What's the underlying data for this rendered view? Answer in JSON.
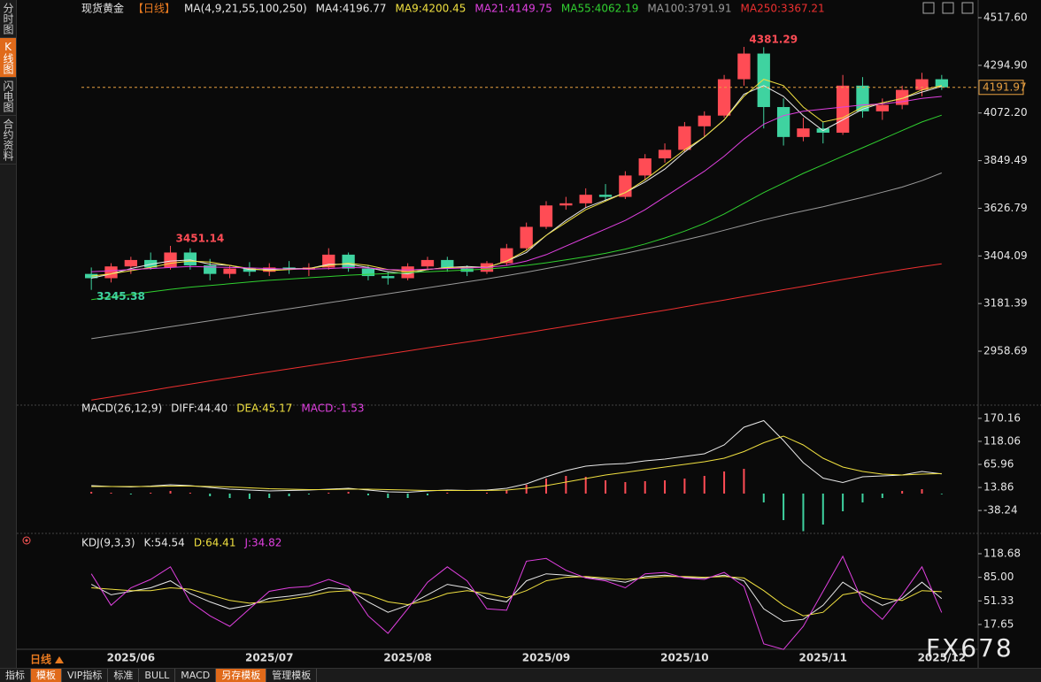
{
  "ui": {
    "side_tabs": [
      "分时图",
      "K线图",
      "闪电图",
      "合约资料"
    ],
    "active_side_tab": 1,
    "bottom_tabs": [
      "指标",
      "模板",
      "VIP指标",
      "标准",
      "BULL",
      "MACD",
      "另存模板",
      "管理模板"
    ],
    "highlighted_bottom_tabs": [
      1,
      6
    ],
    "period_label": "日线",
    "watermark": "FX678"
  },
  "chart_data": [
    {
      "type": "candlestick",
      "title": "现货黄金",
      "period": "【日线】",
      "legend_title": "MA(4,9,21,55,100,250)",
      "categories": [
        null,
        null,
        "2025/06",
        null,
        null,
        null,
        null,
        null,
        null,
        "2025/07",
        null,
        null,
        null,
        null,
        null,
        null,
        "2025/08",
        null,
        null,
        null,
        null,
        null,
        null,
        "2025/09",
        null,
        null,
        null,
        null,
        null,
        null,
        "2025/10",
        null,
        null,
        null,
        null,
        null,
        null,
        "2025/11",
        null,
        null,
        null,
        null,
        null,
        "2025/12"
      ],
      "open": [
        3320,
        3300,
        3355,
        3385,
        3350,
        3420,
        3360,
        3320,
        3345,
        3330,
        3350,
        3340,
        3350,
        3410,
        3345,
        3310,
        3300,
        3355,
        3385,
        3345,
        3330,
        3370,
        3440,
        3540,
        3640,
        3650,
        3690,
        3680,
        3780,
        3860,
        3900,
        4010,
        4060,
        4230,
        4350,
        4100,
        3960,
        4000,
        3980,
        4200,
        4080,
        4110,
        4180,
        4230
      ],
      "high": [
        3350,
        3370,
        3400,
        3420,
        3451.14,
        3440,
        3390,
        3360,
        3375,
        3370,
        3380,
        3370,
        3440,
        3420,
        3360,
        3330,
        3370,
        3400,
        3400,
        3360,
        3380,
        3460,
        3560,
        3660,
        3680,
        3720,
        3740,
        3800,
        3880,
        3930,
        4030,
        4080,
        4250,
        4381.29,
        4380,
        4140,
        4050,
        4030,
        4250,
        4240,
        4140,
        4200,
        4260,
        4250
      ],
      "low": [
        3245.38,
        3280,
        3320,
        3340,
        3340,
        3340,
        3290,
        3300,
        3310,
        3310,
        3320,
        3310,
        3340,
        3330,
        3290,
        3270,
        3290,
        3340,
        3330,
        3310,
        3320,
        3360,
        3430,
        3530,
        3620,
        3630,
        3660,
        3670,
        3760,
        3840,
        3890,
        3960,
        4050,
        4200,
        4000,
        3920,
        3940,
        3930,
        3970,
        4050,
        4040,
        4090,
        4150,
        4180
      ],
      "close": [
        3300,
        3355,
        3385,
        3350,
        3420,
        3360,
        3320,
        3345,
        3330,
        3350,
        3340,
        3350,
        3410,
        3345,
        3310,
        3300,
        3355,
        3385,
        3345,
        3330,
        3370,
        3440,
        3540,
        3640,
        3650,
        3690,
        3680,
        3780,
        3860,
        3900,
        4010,
        4060,
        4230,
        4350,
        4100,
        3960,
        4000,
        3980,
        4200,
        4080,
        4110,
        4180,
        4230,
        4191.97
      ],
      "up_color": "#ff4c55",
      "down_color": "#3fd3a0",
      "series": [
        {
          "name": "MA4:4196.77",
          "color": "#e8e8e8",
          "values": [
            3300,
            3320,
            3345,
            3365,
            3380,
            3385,
            3365,
            3360,
            3340,
            3340,
            3345,
            3345,
            3365,
            3365,
            3350,
            3330,
            3320,
            3340,
            3350,
            3355,
            3350,
            3380,
            3420,
            3500,
            3570,
            3630,
            3665,
            3700,
            3750,
            3810,
            3890,
            3960,
            4040,
            4160,
            4200,
            4150,
            4060,
            3990,
            4040,
            4090,
            4120,
            4140,
            4170,
            4196.77
          ]
        },
        {
          "name": "MA9:4200.45",
          "color": "#f0e040",
          "values": [
            3310,
            3320,
            3335,
            3350,
            3370,
            3380,
            3375,
            3360,
            3345,
            3335,
            3340,
            3345,
            3360,
            3370,
            3360,
            3340,
            3330,
            3340,
            3350,
            3350,
            3350,
            3380,
            3430,
            3500,
            3560,
            3620,
            3660,
            3700,
            3760,
            3830,
            3900,
            3960,
            4040,
            4150,
            4230,
            4200,
            4100,
            4030,
            4050,
            4100,
            4120,
            4140,
            4180,
            4200.45
          ]
        },
        {
          "name": "MA21:4149.75",
          "color": "#e040e0",
          "values": [
            3330,
            3335,
            3340,
            3345,
            3350,
            3355,
            3352,
            3350,
            3348,
            3345,
            3343,
            3342,
            3345,
            3350,
            3348,
            3340,
            3338,
            3342,
            3345,
            3348,
            3350,
            3360,
            3380,
            3410,
            3450,
            3490,
            3530,
            3570,
            3620,
            3680,
            3740,
            3800,
            3870,
            3950,
            4020,
            4060,
            4080,
            4090,
            4100,
            4110,
            4115,
            4125,
            4140,
            4149.75
          ]
        },
        {
          "name": "MA55:4062.19",
          "color": "#30d030",
          "values": [
            3200,
            3212,
            3224,
            3236,
            3248,
            3258,
            3266,
            3274,
            3282,
            3290,
            3296,
            3302,
            3308,
            3314,
            3318,
            3322,
            3326,
            3330,
            3334,
            3338,
            3342,
            3350,
            3360,
            3372,
            3386,
            3400,
            3416,
            3436,
            3460,
            3488,
            3520,
            3556,
            3600,
            3650,
            3700,
            3745,
            3790,
            3830,
            3870,
            3910,
            3950,
            3990,
            4030,
            4062.19
          ]
        },
        {
          "name": "MA100:3791.91",
          "color": "#9a9a9a",
          "values": [
            3017,
            3031,
            3045,
            3059,
            3073,
            3087,
            3101,
            3115,
            3129,
            3143,
            3157,
            3171,
            3185,
            3199,
            3213,
            3227,
            3241,
            3255,
            3269,
            3283,
            3297,
            3312,
            3328,
            3345,
            3362,
            3380,
            3398,
            3416,
            3436,
            3456,
            3478,
            3500,
            3524,
            3548,
            3572,
            3594,
            3614,
            3634,
            3656,
            3678,
            3702,
            3726,
            3756,
            3791.91
          ]
        },
        {
          "name": "MA250:3367.21",
          "color": "#ee3030",
          "values": [
            2730,
            2745,
            2760,
            2775,
            2790,
            2805,
            2820,
            2834,
            2848,
            2862,
            2876,
            2890,
            2904,
            2918,
            2932,
            2946,
            2960,
            2974,
            2988,
            3002,
            3016,
            3030,
            3045,
            3060,
            3075,
            3090,
            3105,
            3120,
            3135,
            3150,
            3166,
            3182,
            3198,
            3214,
            3230,
            3246,
            3262,
            3278,
            3294,
            3310,
            3325,
            3340,
            3354,
            3367.21
          ]
        }
      ],
      "ylim": [
        2719,
        4559
      ],
      "yticks": [
        {
          "value": 4517.6,
          "label": "4517.60"
        },
        {
          "value": 4294.9,
          "label": "4294.90"
        },
        {
          "value": 4072.2,
          "label": "4072.20"
        },
        3849.49,
        3626.79,
        3404.09,
        3181.39,
        2958.69
      ],
      "extremes": [
        4381.29,
        3451.14,
        3245.38
      ],
      "last_price": 4191.97
    },
    {
      "type": "macd",
      "title": "MACD(26,12,9)",
      "up_color": "#ff4c55",
      "down_color": "#3fd3a0",
      "series": [
        {
          "name": "DIFF:44.40",
          "color": "#e8e8e8",
          "style": "line",
          "values": [
            18,
            16,
            15,
            17,
            20,
            18,
            14,
            10,
            8,
            6,
            7,
            8,
            10,
            12,
            8,
            4,
            3,
            6,
            8,
            7,
            8,
            12,
            22,
            38,
            52,
            62,
            66,
            68,
            74,
            78,
            84,
            90,
            110,
            150,
            165,
            120,
            70,
            35,
            25,
            38,
            40,
            42,
            50,
            44.4
          ]
        },
        {
          "name": "DEA:45.17",
          "color": "#f0e040",
          "style": "line",
          "values": [
            16,
            16,
            16,
            16,
            17,
            17,
            16,
            15,
            13,
            11,
            10,
            9,
            9,
            10,
            10,
            9,
            8,
            7,
            7,
            7,
            7,
            8,
            12,
            18,
            26,
            34,
            42,
            48,
            54,
            60,
            66,
            72,
            80,
            95,
            115,
            130,
            110,
            80,
            60,
            50,
            44,
            42,
            44,
            45.17
          ]
        },
        {
          "name": "MACD:-1.53",
          "color": "#e040e0",
          "style": "bar",
          "values": [
            4,
            2,
            -2,
            2,
            6,
            2,
            -6,
            -10,
            -12,
            -10,
            -6,
            -2,
            2,
            4,
            -4,
            -10,
            -10,
            -4,
            2,
            0,
            2,
            8,
            20,
            34,
            40,
            38,
            30,
            26,
            28,
            30,
            34,
            40,
            50,
            56,
            -20,
            -60,
            -85,
            -70,
            -40,
            -20,
            -10,
            6,
            10,
            -1.53
          ]
        }
      ],
      "ylim": [
        -92,
        192
      ],
      "yticks": [
        170.16,
        118.06,
        65.96,
        13.86,
        -38.24
      ]
    },
    {
      "type": "line",
      "title": "KDJ(9,3,3)",
      "series": [
        {
          "name": "K:54.54",
          "color": "#e8e8e8",
          "values": [
            75,
            60,
            65,
            70,
            80,
            62,
            50,
            40,
            45,
            55,
            58,
            62,
            70,
            68,
            50,
            35,
            45,
            60,
            75,
            70,
            55,
            50,
            80,
            90,
            88,
            85,
            82,
            78,
            86,
            88,
            85,
            84,
            88,
            80,
            40,
            22,
            25,
            45,
            78,
            60,
            45,
            55,
            78,
            54.54
          ]
        },
        {
          "name": "D:64.41",
          "color": "#f0e040",
          "values": [
            70,
            68,
            66,
            66,
            70,
            68,
            60,
            52,
            48,
            50,
            54,
            58,
            64,
            66,
            60,
            50,
            46,
            52,
            62,
            66,
            62,
            56,
            66,
            80,
            85,
            86,
            84,
            82,
            84,
            86,
            86,
            85,
            86,
            84,
            66,
            45,
            30,
            35,
            60,
            65,
            55,
            52,
            66,
            64.41
          ]
        },
        {
          "name": "J:34.82",
          "color": "#e040e0",
          "values": [
            90,
            45,
            70,
            82,
            100,
            50,
            30,
            15,
            40,
            65,
            70,
            72,
            82,
            72,
            30,
            5,
            40,
            78,
            100,
            80,
            40,
            38,
            108,
            112,
            95,
            84,
            80,
            70,
            90,
            92,
            84,
            82,
            92,
            72,
            -10,
            -18,
            15,
            65,
            115,
            50,
            25,
            60,
            100,
            34.82
          ]
        }
      ],
      "ylim": [
        -19,
        130
      ],
      "yticks": [
        118.68,
        {
          "value": 85,
          "label": "85.00"
        },
        51.33,
        17.65
      ]
    }
  ]
}
